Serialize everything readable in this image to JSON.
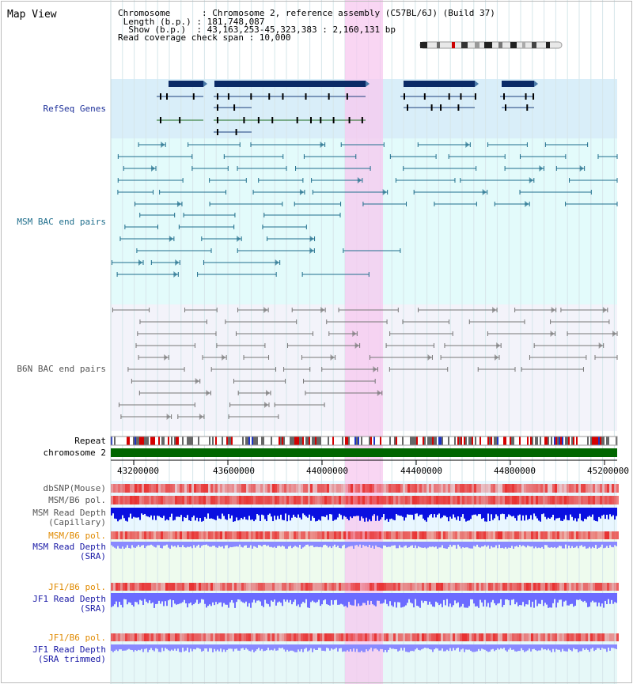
{
  "app": {
    "title": "Map View"
  },
  "header": {
    "lines": [
      "Chromosome      : Chromosome 2, reference assembly (C57BL/6J) (Build 37)",
      " Length (b.p.) : 181,748,087",
      "  Show (b.p.)  : 43,163,253-45,323,383 : 2,160,131 bp",
      "Read coverage check span : 10,000"
    ]
  },
  "tracks": [
    {
      "id": "refseq",
      "label": "RefSeq Genes",
      "color": "#1c2f99"
    },
    {
      "id": "msm-bac",
      "label": "MSM BAC end pairs",
      "color": "#1f6e8c"
    },
    {
      "id": "b6n-bac",
      "label": "B6N BAC end pairs",
      "color": "#555555"
    },
    {
      "id": "repeat",
      "label": "Repeat",
      "color": "#000000"
    },
    {
      "id": "chromosome",
      "label": "chromosome 2",
      "color": "#000000"
    },
    {
      "id": "dbsnp",
      "label": "dbSNP(Mouse)",
      "color": "#555555"
    },
    {
      "id": "msm-b6-pol",
      "label": "MSM/B6 pol.",
      "color": "#555555"
    },
    {
      "id": "msm-depth-cap",
      "label": "MSM Read Depth\n(Capillary)",
      "color": "#555555"
    },
    {
      "id": "msm-b6-pol-2",
      "label": "MSM/B6 pol.",
      "color": "#e08a00"
    },
    {
      "id": "msm-depth-sra",
      "label": "MSM Read Depth\n(SRA)",
      "color": "#1a1aa6"
    },
    {
      "id": "jf1-b6-pol",
      "label": "JF1/B6 pol.",
      "color": "#e08a00"
    },
    {
      "id": "jf1-depth-sra",
      "label": "JF1 Read Depth\n(SRA)",
      "color": "#1a1aa6"
    },
    {
      "id": "jf1-b6-pol-2",
      "label": "JF1/B6 pol.",
      "color": "#e08a00"
    },
    {
      "id": "jf1-depth-trim",
      "label": "JF1 Read Depth\n(SRA trimmed)",
      "color": "#1a1aa6"
    }
  ],
  "axis": {
    "ticks": [
      "43200000",
      "43600000",
      "44000000",
      "44400000",
      "44800000",
      "45200000"
    ]
  },
  "colors": {
    "refseq_bg": "#d9eef9",
    "msm_bg": "#e3fbfb",
    "b6n_bg": "#f3f3fa",
    "highlight": "#f7c8ef",
    "chromosome_bar": "#006600",
    "depth_dark": "#0a10e0",
    "depth_light": "#8a8aff",
    "pol_red": "#e83030"
  }
}
